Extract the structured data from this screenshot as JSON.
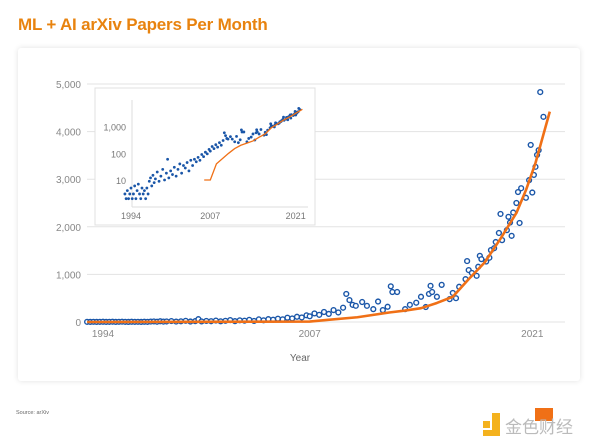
{
  "title": "ML + AI arXiv Papers Per Month",
  "source": "Source: arXiv",
  "logo_text": "金色财经",
  "colors": {
    "title": "#e8830f",
    "points": "#1a56a8",
    "trend": "#f07016",
    "grid": "#e3e3e3"
  },
  "chart_data": {
    "type": "scatter",
    "title": "ML + AI arXiv Papers Per Month",
    "xlabel": "Year",
    "ylabel": "",
    "xlim": [
      1993,
      2022.3
    ],
    "ylim": [
      0,
      5000
    ],
    "x_ticks": [
      "1994",
      "2007",
      "2021"
    ],
    "y_ticks": [
      "0",
      "1,000",
      "2,000",
      "3,000",
      "4,000",
      "5,000"
    ],
    "grid": "horizontal",
    "points": [
      [
        1993.0,
        3
      ],
      [
        1993.2,
        2
      ],
      [
        1993.4,
        4
      ],
      [
        1993.6,
        2
      ],
      [
        1993.8,
        3
      ],
      [
        1994.0,
        5
      ],
      [
        1994.2,
        2
      ],
      [
        1994.4,
        3
      ],
      [
        1994.6,
        6
      ],
      [
        1994.8,
        2
      ],
      [
        1995.0,
        4
      ],
      [
        1995.2,
        7
      ],
      [
        1995.4,
        3
      ],
      [
        1995.6,
        2
      ],
      [
        1995.8,
        5
      ],
      [
        1996.0,
        3
      ],
      [
        1996.2,
        4
      ],
      [
        1996.4,
        2
      ],
      [
        1996.6,
        5
      ],
      [
        1996.8,
        3
      ],
      [
        1997.0,
        9
      ],
      [
        1997.2,
        12
      ],
      [
        1997.4,
        6
      ],
      [
        1997.6,
        15
      ],
      [
        1997.8,
        8
      ],
      [
        1998.0,
        11
      ],
      [
        1998.3,
        20
      ],
      [
        1998.6,
        9
      ],
      [
        1998.9,
        14
      ],
      [
        1999.2,
        25
      ],
      [
        1999.5,
        10
      ],
      [
        1999.8,
        18
      ],
      [
        2000.0,
        60
      ],
      [
        2000.2,
        12
      ],
      [
        2000.5,
        22
      ],
      [
        2000.8,
        16
      ],
      [
        2001.1,
        30
      ],
      [
        2001.4,
        14
      ],
      [
        2001.7,
        25
      ],
      [
        2002.0,
        40
      ],
      [
        2002.3,
        18
      ],
      [
        2002.6,
        35
      ],
      [
        2002.9,
        28
      ],
      [
        2003.2,
        45
      ],
      [
        2003.5,
        22
      ],
      [
        2003.8,
        55
      ],
      [
        2004.1,
        35
      ],
      [
        2004.4,
        60
      ],
      [
        2004.7,
        48
      ],
      [
        2005.0,
        70
      ],
      [
        2005.3,
        55
      ],
      [
        2005.6,
        90
      ],
      [
        2005.9,
        75
      ],
      [
        2006.2,
        110
      ],
      [
        2006.5,
        95
      ],
      [
        2006.8,
        140
      ],
      [
        2007.0,
        120
      ],
      [
        2007.3,
        180
      ],
      [
        2007.6,
        150
      ],
      [
        2007.9,
        210
      ],
      [
        2008.2,
        170
      ],
      [
        2008.5,
        250
      ],
      [
        2008.8,
        200
      ],
      [
        2009.1,
        300
      ],
      [
        2009.3,
        590
      ],
      [
        2009.5,
        460
      ],
      [
        2009.7,
        360
      ],
      [
        2009.9,
        340
      ],
      [
        2010.3,
        420
      ],
      [
        2010.6,
        340
      ],
      [
        2011.0,
        270
      ],
      [
        2011.3,
        430
      ],
      [
        2011.6,
        250
      ],
      [
        2011.9,
        320
      ],
      [
        2012.1,
        750
      ],
      [
        2012.2,
        630
      ],
      [
        2012.5,
        630
      ],
      [
        2013.0,
        270
      ],
      [
        2013.3,
        360
      ],
      [
        2013.7,
        405
      ],
      [
        2014.0,
        530
      ],
      [
        2014.3,
        315
      ],
      [
        2014.5,
        590
      ],
      [
        2014.6,
        760
      ],
      [
        2014.7,
        630
      ],
      [
        2015.0,
        530
      ],
      [
        2015.3,
        780
      ],
      [
        2015.8,
        480
      ],
      [
        2016.0,
        610
      ],
      [
        2016.2,
        500
      ],
      [
        2016.4,
        740
      ],
      [
        2016.8,
        900
      ],
      [
        2016.9,
        1280
      ],
      [
        2017.0,
        1090
      ],
      [
        2017.2,
        1030
      ],
      [
        2017.5,
        970
      ],
      [
        2017.6,
        1160
      ],
      [
        2017.7,
        1390
      ],
      [
        2017.8,
        1320
      ],
      [
        2018.1,
        1270
      ],
      [
        2018.3,
        1350
      ],
      [
        2018.4,
        1510
      ],
      [
        2018.6,
        1550
      ],
      [
        2018.7,
        1680
      ],
      [
        2018.9,
        1870
      ],
      [
        2019.0,
        2270
      ],
      [
        2019.1,
        1720
      ],
      [
        2019.4,
        1930
      ],
      [
        2019.5,
        2210
      ],
      [
        2019.6,
        2090
      ],
      [
        2019.7,
        1810
      ],
      [
        2019.8,
        2300
      ],
      [
        2020.0,
        2500
      ],
      [
        2020.1,
        2730
      ],
      [
        2020.2,
        2080
      ],
      [
        2020.3,
        2810
      ],
      [
        2020.6,
        2610
      ],
      [
        2020.8,
        2980
      ],
      [
        2020.9,
        3720
      ],
      [
        2021.0,
        2720
      ],
      [
        2021.1,
        3090
      ],
      [
        2021.2,
        3260
      ],
      [
        2021.3,
        3510
      ],
      [
        2021.4,
        3610
      ],
      [
        2021.5,
        4830
      ],
      [
        2021.7,
        4310
      ]
    ],
    "trend": [
      [
        1993,
        0
      ],
      [
        2007,
        10
      ],
      [
        2008,
        40
      ],
      [
        2010,
        100
      ],
      [
        2011,
        150
      ],
      [
        2012,
        200
      ],
      [
        2013,
        240
      ],
      [
        2014,
        290
      ],
      [
        2015,
        400
      ],
      [
        2016,
        530
      ],
      [
        2017,
        900
      ],
      [
        2018,
        1250
      ],
      [
        2019,
        1750
      ],
      [
        2020,
        2290
      ],
      [
        2020.6,
        2770
      ],
      [
        2021.2,
        3340
      ],
      [
        2022.1,
        4420
      ]
    ],
    "inset": {
      "scale": "log",
      "xlim": [
        1993,
        2022.3
      ],
      "ylim": [
        1,
        3000
      ],
      "x_ticks": [
        "1994",
        "2007",
        "2021"
      ],
      "y_ticks": [
        "10",
        "100",
        "1,000"
      ],
      "trend_start": 2006
    }
  }
}
